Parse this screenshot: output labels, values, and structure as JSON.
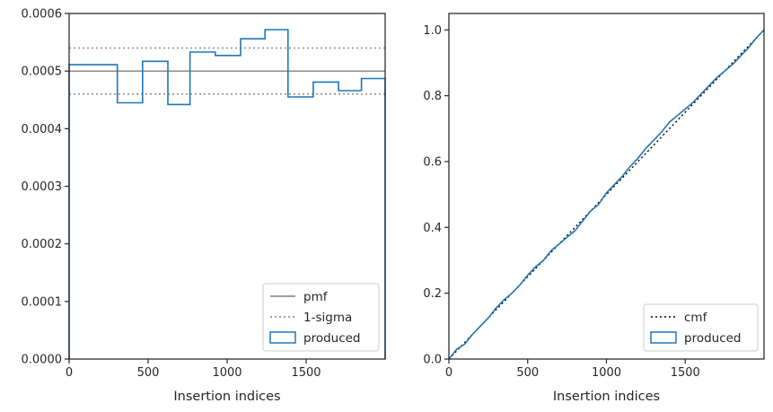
{
  "chart_data": [
    {
      "type": "line",
      "xlabel": "Insertion indices",
      "ylabel": "",
      "xlim": [
        0,
        2000
      ],
      "ylim": [
        0,
        0.0006
      ],
      "xticks": [
        0,
        500,
        1000,
        1500
      ],
      "xtick_labels": [
        "0",
        "500",
        "1000",
        "1500"
      ],
      "yticks": [
        0,
        0.0001,
        0.0002,
        0.0003,
        0.0004,
        0.0005,
        0.0006
      ],
      "ytick_labels": [
        "0.0000",
        "0.0001",
        "0.0002",
        "0.0003",
        "0.0004",
        "0.0005",
        "0.0006"
      ],
      "legend_position": "lower-right",
      "reference_lines": [
        {
          "name": "pmf",
          "y": 0.0005,
          "style": "solid",
          "color": "#808080"
        },
        {
          "name": "1-sigma",
          "y": 0.00054,
          "style": "dotted",
          "color": "#808080"
        },
        {
          "name": "1-sigma",
          "y": 0.00046,
          "style": "dotted",
          "color": "#808080",
          "legend": false
        }
      ],
      "series": [
        {
          "name": "produced",
          "kind": "step-histogram",
          "color": "#1f77b4",
          "bin_edges": [
            0,
            305,
            465,
            625,
            765,
            925,
            1085,
            1240,
            1385,
            1545,
            1705,
            1850,
            2000
          ],
          "values": [
            0.000511,
            0.000445,
            0.000517,
            0.000442,
            0.000533,
            0.000527,
            0.000556,
            0.000572,
            0.000455,
            0.000481,
            0.000466,
            0.000487
          ]
        }
      ],
      "legend": [
        {
          "label": "pmf",
          "style": "solid",
          "color": "#808080"
        },
        {
          "label": "1-sigma",
          "style": "dotted",
          "color": "#808080"
        },
        {
          "label": "produced",
          "style": "patch",
          "color": "#1f77b4"
        }
      ]
    },
    {
      "type": "line",
      "xlabel": "Insertion indices",
      "ylabel": "",
      "xlim": [
        0,
        2000
      ],
      "ylim": [
        0,
        1.05
      ],
      "xticks": [
        0,
        500,
        1000,
        1500
      ],
      "xtick_labels": [
        "0",
        "500",
        "1000",
        "1500"
      ],
      "yticks": [
        0,
        0.2,
        0.4,
        0.6,
        0.8,
        1.0
      ],
      "ytick_labels": [
        "0.0",
        "0.2",
        "0.4",
        "0.6",
        "0.8",
        "1.0"
      ],
      "legend_position": "lower-right",
      "series": [
        {
          "name": "cmf",
          "style": "dotted",
          "color": "#000000",
          "x": [
            0,
            2000
          ],
          "y": [
            0,
            1.0
          ]
        },
        {
          "name": "produced",
          "style": "solid",
          "color": "#1f77b4",
          "x": [
            0,
            50,
            100,
            150,
            200,
            250,
            300,
            350,
            400,
            450,
            500,
            550,
            600,
            650,
            700,
            750,
            800,
            850,
            900,
            950,
            1000,
            1050,
            1100,
            1150,
            1200,
            1250,
            1300,
            1350,
            1400,
            1450,
            1500,
            1550,
            1600,
            1650,
            1700,
            1750,
            1800,
            1850,
            1900,
            1950,
            2000
          ],
          "y": [
            0,
            0.03,
            0.045,
            0.075,
            0.1,
            0.125,
            0.155,
            0.18,
            0.2,
            0.225,
            0.255,
            0.28,
            0.3,
            0.33,
            0.35,
            0.37,
            0.39,
            0.42,
            0.45,
            0.47,
            0.505,
            0.53,
            0.555,
            0.585,
            0.61,
            0.64,
            0.665,
            0.69,
            0.72,
            0.74,
            0.76,
            0.78,
            0.805,
            0.83,
            0.855,
            0.875,
            0.895,
            0.92,
            0.945,
            0.975,
            1.0
          ]
        }
      ],
      "legend": [
        {
          "label": "cmf",
          "style": "dotted",
          "color": "#000000"
        },
        {
          "label": "produced",
          "style": "patch",
          "color": "#1f77b4"
        }
      ]
    }
  ]
}
